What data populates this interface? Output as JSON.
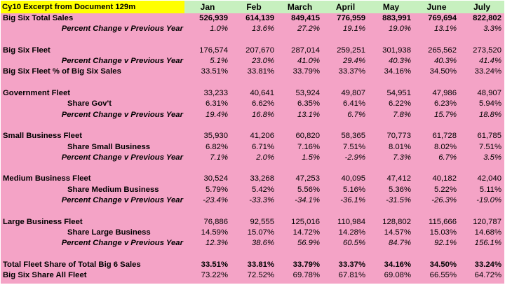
{
  "title": "Cy10 Excerpt from Document 129m",
  "months": [
    "Jan",
    "Feb",
    "March",
    "April",
    "May",
    "June",
    "July"
  ],
  "rows": [
    {
      "label": "Big Six Total Sales",
      "style": "l0",
      "bold": true,
      "values": [
        "526,939",
        "614,139",
        "849,415",
        "776,959",
        "883,991",
        "769,694",
        "822,802"
      ]
    },
    {
      "label": "Percent Change v Previous Year",
      "style": "l1",
      "pct": true,
      "values": [
        "1.0%",
        "13.6%",
        "27.2%",
        "19.1%",
        "19.0%",
        "13.1%",
        "3.3%"
      ]
    },
    {
      "gap": true
    },
    {
      "label": "Big Six Fleet",
      "style": "l0",
      "values": [
        "176,574",
        "207,670",
        "287,014",
        "259,251",
        "301,938",
        "265,562",
        "273,520"
      ]
    },
    {
      "label": "Percent Change v Previous Year",
      "style": "l1",
      "pct": true,
      "values": [
        "5.1%",
        "23.0%",
        "41.0%",
        "29.4%",
        "40.3%",
        "40.3%",
        "41.4%"
      ]
    },
    {
      "label": "Big Six Fleet % of Big Six Sales",
      "style": "l0",
      "values": [
        "33.51%",
        "33.81%",
        "33.79%",
        "33.37%",
        "34.16%",
        "34.50%",
        "33.24%"
      ]
    },
    {
      "gap": true
    },
    {
      "label": "Government Fleet",
      "style": "l0",
      "values": [
        "33,233",
        "40,641",
        "53,924",
        "49,807",
        "54,951",
        "47,986",
        "48,907"
      ]
    },
    {
      "label": "Share Gov't",
      "style": "l2",
      "values": [
        "6.31%",
        "6.62%",
        "6.35%",
        "6.41%",
        "6.22%",
        "6.23%",
        "5.94%"
      ]
    },
    {
      "label": "Percent Change v Previous Year",
      "style": "l1",
      "pct": true,
      "values": [
        "19.4%",
        "16.8%",
        "13.1%",
        "6.7%",
        "7.8%",
        "15.7%",
        "18.8%"
      ]
    },
    {
      "gap": true
    },
    {
      "label": "Small Business Fleet",
      "style": "l0",
      "values": [
        "35,930",
        "41,206",
        "60,820",
        "58,365",
        "70,773",
        "61,728",
        "61,785"
      ]
    },
    {
      "label": "Share Small Business",
      "style": "l2",
      "values": [
        "6.82%",
        "6.71%",
        "7.16%",
        "7.51%",
        "8.01%",
        "8.02%",
        "7.51%"
      ]
    },
    {
      "label": "Percent Change v Previous Year",
      "style": "l1",
      "pct": true,
      "values": [
        "7.1%",
        "2.0%",
        "1.5%",
        "-2.9%",
        "7.3%",
        "6.7%",
        "3.5%"
      ]
    },
    {
      "gap": true
    },
    {
      "label": "Medium Business Fleet",
      "style": "l0",
      "values": [
        "30,524",
        "33,268",
        "47,253",
        "40,095",
        "47,412",
        "40,182",
        "42,040"
      ]
    },
    {
      "label": "Share Medium Business",
      "style": "l2",
      "values": [
        "5.79%",
        "5.42%",
        "5.56%",
        "5.16%",
        "5.36%",
        "5.22%",
        "5.11%"
      ]
    },
    {
      "label": "Percent Change v Previous Year",
      "style": "l1",
      "pct": true,
      "values": [
        "-23.4%",
        "-33.3%",
        "-34.1%",
        "-36.1%",
        "-31.5%",
        "-26.3%",
        "-19.0%"
      ]
    },
    {
      "gap": true
    },
    {
      "label": "Large Business Fleet",
      "style": "l0",
      "values": [
        "76,886",
        "92,555",
        "125,016",
        "110,984",
        "128,802",
        "115,666",
        "120,787"
      ]
    },
    {
      "label": "Share Large Business",
      "style": "l2",
      "values": [
        "14.59%",
        "15.07%",
        "14.72%",
        "14.28%",
        "14.57%",
        "15.03%",
        "14.68%"
      ]
    },
    {
      "label": "Percent Change v Previous Year",
      "style": "l1",
      "pct": true,
      "values": [
        "12.3%",
        "38.6%",
        "56.9%",
        "60.5%",
        "84.7%",
        "92.1%",
        "156.1%"
      ]
    },
    {
      "gap": true
    },
    {
      "label": "Total Fleet Share of Total Big 6 Sales",
      "style": "l0",
      "bold": true,
      "values": [
        "33.51%",
        "33.81%",
        "33.79%",
        "33.37%",
        "34.16%",
        "34.50%",
        "33.24%"
      ]
    },
    {
      "label": "Big Six Share All Fleet",
      "style": "l0",
      "values": [
        "73.22%",
        "72.52%",
        "69.78%",
        "67.81%",
        "69.08%",
        "66.55%",
        "64.72%"
      ]
    }
  ],
  "colors": {
    "background": "#f4a3c6",
    "header": "#c7f0bf",
    "title": "#ffff00"
  }
}
